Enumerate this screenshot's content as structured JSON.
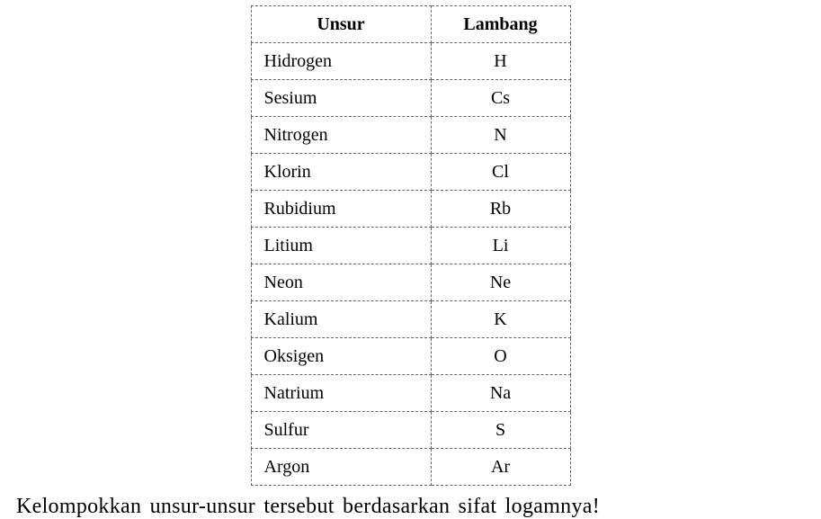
{
  "table": {
    "headers": {
      "unsur": "Unsur",
      "lambang": "Lambang"
    },
    "rows": [
      {
        "unsur": "Hidrogen",
        "lambang": "H"
      },
      {
        "unsur": "Sesium",
        "lambang": "Cs"
      },
      {
        "unsur": "Nitrogen",
        "lambang": "N"
      },
      {
        "unsur": "Klorin",
        "lambang": "Cl"
      },
      {
        "unsur": "Rubidium",
        "lambang": "Rb"
      },
      {
        "unsur": "Litium",
        "lambang": "Li"
      },
      {
        "unsur": "Neon",
        "lambang": "Ne"
      },
      {
        "unsur": "Kalium",
        "lambang": "K"
      },
      {
        "unsur": "Oksigen",
        "lambang": "O"
      },
      {
        "unsur": "Natrium",
        "lambang": "Na"
      },
      {
        "unsur": "Sulfur",
        "lambang": "S"
      },
      {
        "unsur": "Argon",
        "lambang": "Ar"
      }
    ]
  },
  "instruction_text": "Kelompokkan unsur-unsur tersebut berdasarkan sifat logamnya!",
  "style": {
    "background_color": "#ffffff",
    "text_color": "#000000",
    "border_color": "#666666",
    "border_style": "dashed",
    "header_fontsize": 20,
    "cell_fontsize": 20,
    "instruction_fontsize": 24,
    "col_unsur_width": 200,
    "col_lambang_width": 155,
    "col_unsur_align": "left",
    "col_lambang_align": "center",
    "font_family": "Palatino, Georgia, serif"
  }
}
